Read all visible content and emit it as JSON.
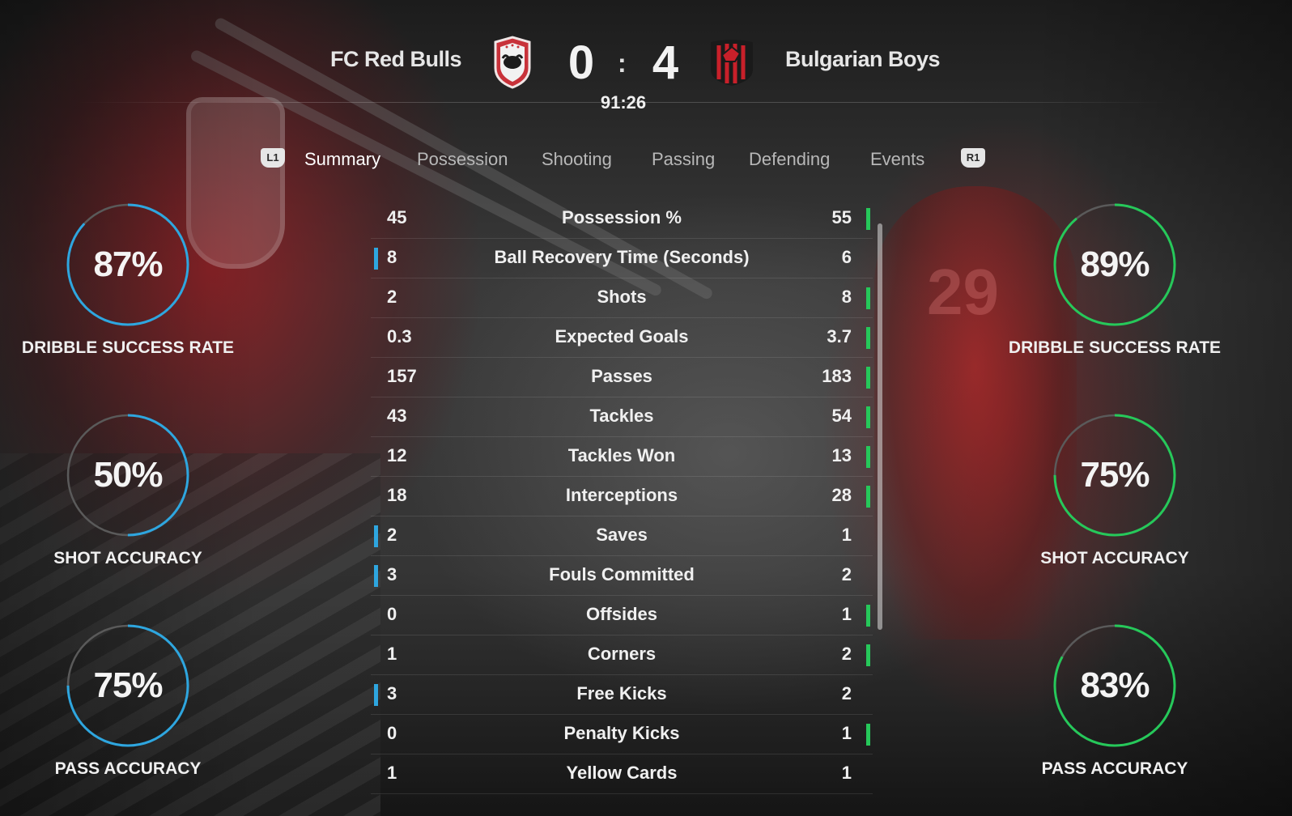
{
  "match": {
    "home_team": "FC Red Bulls",
    "away_team": "Bulgarian Boys",
    "home_score": "0",
    "separator": ":",
    "away_score": "4",
    "clock": "91:26"
  },
  "tabs": {
    "left_bumper": "L1",
    "right_bumper": "R1",
    "items": [
      {
        "label": "Summary",
        "active": true
      },
      {
        "label": "Possession",
        "active": false
      },
      {
        "label": "Shooting",
        "active": false
      },
      {
        "label": "Passing",
        "active": false
      },
      {
        "label": "Defending",
        "active": false
      },
      {
        "label": "Events",
        "active": false
      }
    ]
  },
  "home_rings": [
    {
      "value": "87%",
      "fraction": 0.87,
      "label": "DRIBBLE SUCCESS RATE"
    },
    {
      "value": "50%",
      "fraction": 0.5,
      "label": "SHOT ACCURACY"
    },
    {
      "value": "75%",
      "fraction": 0.75,
      "label": "PASS ACCURACY"
    }
  ],
  "away_rings": [
    {
      "value": "89%",
      "fraction": 0.89,
      "label": "DRIBBLE SUCCESS RATE"
    },
    {
      "value": "75%",
      "fraction": 0.75,
      "label": "SHOT ACCURACY"
    },
    {
      "value": "83%",
      "fraction": 0.83,
      "label": "PASS ACCURACY"
    }
  ],
  "colors": {
    "home_accent": "#2ea6df",
    "away_accent": "#26c85a",
    "ring_track": "#5a5a5a"
  },
  "stats": [
    {
      "label": "Possession %",
      "home": "45",
      "away": "55",
      "leader": "away"
    },
    {
      "label": "Ball Recovery Time (Seconds)",
      "home": "8",
      "away": "6",
      "leader": "home"
    },
    {
      "label": "Shots",
      "home": "2",
      "away": "8",
      "leader": "away"
    },
    {
      "label": "Expected Goals",
      "home": "0.3",
      "away": "3.7",
      "leader": "away"
    },
    {
      "label": "Passes",
      "home": "157",
      "away": "183",
      "leader": "away"
    },
    {
      "label": "Tackles",
      "home": "43",
      "away": "54",
      "leader": "away"
    },
    {
      "label": "Tackles Won",
      "home": "12",
      "away": "13",
      "leader": "away"
    },
    {
      "label": "Interceptions",
      "home": "18",
      "away": "28",
      "leader": "away"
    },
    {
      "label": "Saves",
      "home": "2",
      "away": "1",
      "leader": "home"
    },
    {
      "label": "Fouls Committed",
      "home": "3",
      "away": "2",
      "leader": "home"
    },
    {
      "label": "Offsides",
      "home": "0",
      "away": "1",
      "leader": "away"
    },
    {
      "label": "Corners",
      "home": "1",
      "away": "2",
      "leader": "away"
    },
    {
      "label": "Free Kicks",
      "home": "3",
      "away": "2",
      "leader": "home"
    },
    {
      "label": "Penalty Kicks",
      "home": "0",
      "away": "1",
      "leader": "away"
    },
    {
      "label": "Yellow Cards",
      "home": "1",
      "away": "1",
      "leader": "none"
    }
  ]
}
